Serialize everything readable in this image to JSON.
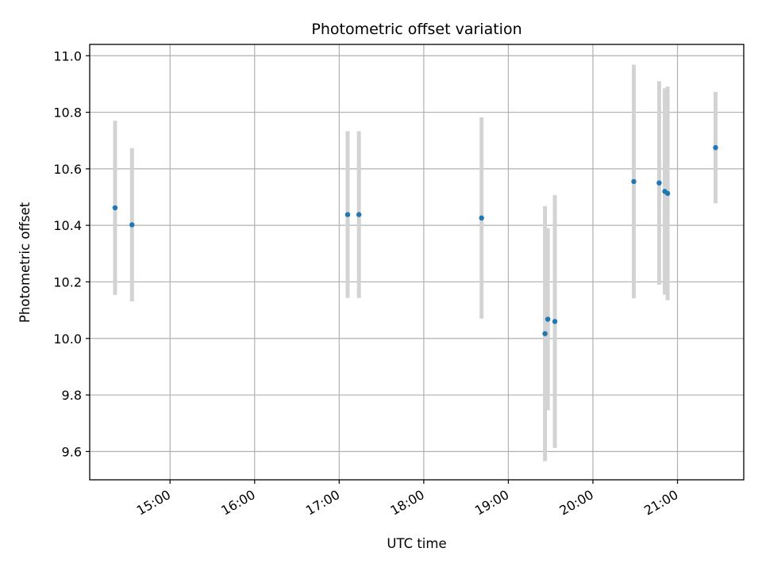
{
  "chart_data": {
    "type": "scatter",
    "title": "Photometric offset variation",
    "xlabel": "UTC time",
    "ylabel": "Photometric offset",
    "x_ticks": [
      "15:00",
      "16:00",
      "17:00",
      "18:00",
      "19:00",
      "20:00",
      "21:00"
    ],
    "y_ticks": [
      "9.6",
      "9.8",
      "10.0",
      "10.2",
      "10.4",
      "10.6",
      "10.8",
      "11.0"
    ],
    "xlim": [
      "14:03",
      "21:47"
    ],
    "ylim": [
      9.5,
      11.04
    ],
    "grid": true,
    "marker_color": "#1f77b4",
    "errorbar_color": "#d3d3d3",
    "points": [
      {
        "x": "14:21",
        "y": 10.462,
        "yerr": 0.308
      },
      {
        "x": "14:33",
        "y": 10.402,
        "yerr": 0.271
      },
      {
        "x": "17:06",
        "y": 10.438,
        "yerr": 0.295
      },
      {
        "x": "17:14",
        "y": 10.438,
        "yerr": 0.295
      },
      {
        "x": "18:41",
        "y": 10.426,
        "yerr": 0.356
      },
      {
        "x": "19:26",
        "y": 10.017,
        "yerr": 0.451
      },
      {
        "x": "19:28",
        "y": 10.068,
        "yerr": 0.322
      },
      {
        "x": "19:33",
        "y": 10.06,
        "yerr": 0.447
      },
      {
        "x": "20:29",
        "y": 10.555,
        "yerr": 0.413
      },
      {
        "x": "20:47",
        "y": 10.55,
        "yerr": 0.36
      },
      {
        "x": "20:51",
        "y": 10.52,
        "yerr": 0.365
      },
      {
        "x": "20:53",
        "y": 10.513,
        "yerr": 0.378
      },
      {
        "x": "21:27",
        "y": 10.675,
        "yerr": 0.197
      }
    ]
  }
}
